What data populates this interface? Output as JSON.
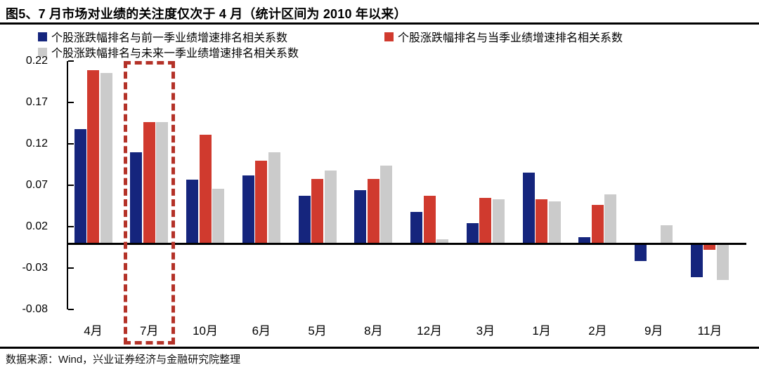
{
  "header": {
    "title": "图5、7 月市场对业绩的关注度仅次于 4 月（统计区间为 2010 年以来）"
  },
  "footer": {
    "source": "数据来源：Wind，兴业证券经济与金融研究院整理"
  },
  "chart_data": {
    "type": "bar",
    "title": "图5、7 月市场对业绩的关注度仅次于 4 月（统计区间为 2010 年以来）",
    "categories": [
      "4月",
      "7月",
      "10月",
      "6月",
      "5月",
      "8月",
      "12月",
      "3月",
      "1月",
      "2月",
      "9月",
      "11月"
    ],
    "series": [
      {
        "name": "个股涨跌幅排名与前一季业绩增速排名相关系数",
        "color": "#15257d",
        "values": [
          0.138,
          0.11,
          0.077,
          0.082,
          0.058,
          0.064,
          0.038,
          0.025,
          0.086,
          0.008,
          -0.021,
          -0.041
        ]
      },
      {
        "name": "个股涨跌幅排名与当季业绩增速排名相关系数",
        "color": "#d03a2e",
        "values": [
          0.209,
          0.147,
          0.131,
          0.1,
          0.078,
          0.078,
          0.058,
          0.055,
          0.053,
          0.047,
          0.0,
          -0.008
        ]
      },
      {
        "name": "个股涨跌幅排名与未来一季业绩增速排名相关系数",
        "color": "#cbcbcb",
        "values": [
          0.206,
          0.147,
          0.066,
          0.11,
          0.088,
          0.094,
          0.005,
          0.053,
          0.051,
          0.059,
          0.022,
          -0.044
        ]
      }
    ],
    "yticks": [
      0.22,
      0.17,
      0.12,
      0.07,
      0.02,
      -0.03,
      -0.08
    ],
    "ylim": [
      -0.08,
      0.22
    ],
    "xlabel": "",
    "ylabel": "",
    "grid": false,
    "legend_position": "top",
    "highlight_category": "7月",
    "highlight_color": "#b43228"
  }
}
